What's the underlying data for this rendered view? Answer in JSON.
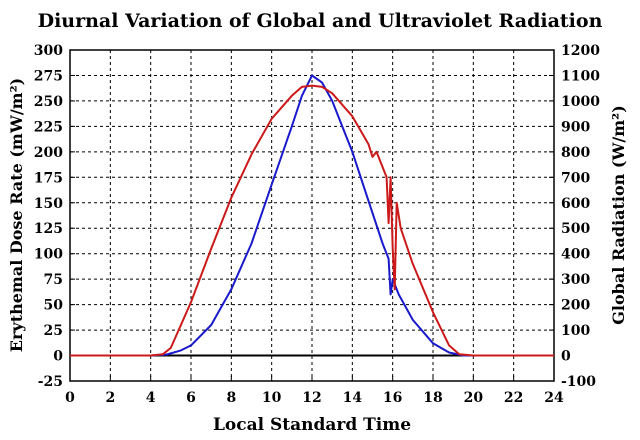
{
  "chart_data": {
    "type": "line",
    "title": "Diurnal Variation of Global and Ultraviolet Radiation",
    "xlabel": "Local Standard Time",
    "ylabel_left": "Erythemal Dose Rate (mW/m²)",
    "ylabel_right": "Global Radiation (W/m²)",
    "xlim": [
      0,
      24
    ],
    "ylim_left": [
      -25,
      300
    ],
    "ylim_right": [
      -100,
      1200
    ],
    "x_ticks": [
      0,
      2,
      4,
      6,
      8,
      10,
      12,
      14,
      16,
      18,
      20,
      22,
      24
    ],
    "y_ticks_left": [
      -25,
      0,
      25,
      50,
      75,
      100,
      125,
      150,
      175,
      200,
      225,
      250,
      275,
      300
    ],
    "y_ticks_right": [
      -100,
      0,
      100,
      200,
      300,
      400,
      500,
      600,
      700,
      800,
      900,
      1000,
      1100,
      1200
    ],
    "grid": true,
    "series": [
      {
        "name": "",
        "axis": "left",
        "color": "#1a1acc",
        "x": [
          0,
          4,
          4.8,
          5.5,
          6,
          7,
          8,
          9,
          10,
          11,
          11.5,
          12,
          12.5,
          13,
          14,
          15,
          15.5,
          15.8,
          15.9,
          16.0,
          16.1,
          16.3,
          17,
          18,
          18.8,
          19.5,
          20,
          24
        ],
        "y": [
          0,
          0,
          1,
          5,
          10,
          30,
          65,
          110,
          168,
          225,
          255,
          275,
          268,
          250,
          200,
          140,
          110,
          95,
          60,
          75,
          70,
          60,
          35,
          12,
          3,
          0,
          0,
          0
        ]
      },
      {
        "name": "",
        "axis": "right",
        "color": "#cc1a1a",
        "x": [
          0,
          4,
          4.6,
          5,
          6,
          7,
          8,
          9,
          10,
          11,
          11.5,
          12,
          12.5,
          13,
          14,
          14.8,
          15.0,
          15.2,
          15.5,
          15.7,
          15.8,
          15.9,
          16.0,
          16.1,
          16.2,
          16.4,
          17,
          18,
          18.8,
          19.3,
          20,
          24
        ],
        "y": [
          0,
          0,
          5,
          30,
          210,
          420,
          620,
          790,
          930,
          1020,
          1055,
          1060,
          1055,
          1030,
          940,
          830,
          780,
          800,
          740,
          700,
          520,
          700,
          420,
          260,
          600,
          500,
          360,
          170,
          40,
          5,
          0,
          0
        ]
      }
    ]
  }
}
